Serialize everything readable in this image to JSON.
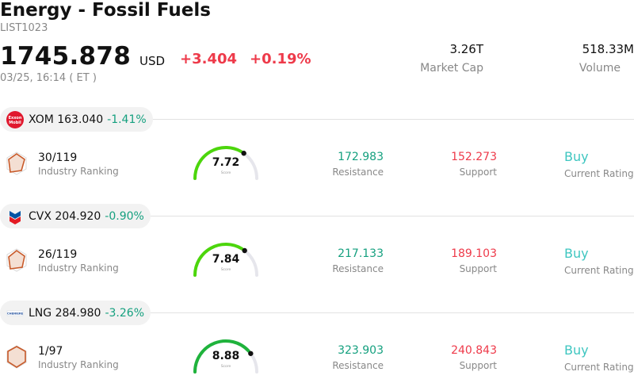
{
  "header": {
    "title": "Energy - Fossil Fuels",
    "code": "LIST1023",
    "price": "1745.878",
    "currency": "USD",
    "change": "+3.404",
    "change_pct": "+0.19%",
    "time": "03/25, 16:14 ( ET )",
    "market_cap": {
      "value": "3.26T",
      "label": "Market Cap"
    },
    "volume": {
      "value": "518.33M",
      "label": "Volume"
    }
  },
  "colors": {
    "up": "#15a07f",
    "down": "#ee3a4a",
    "rating": "#3ec6c0"
  },
  "stocks": [
    {
      "logo_icon": "exxonmobil-logo-icon",
      "logo_text": "Exxon Mobil",
      "symbol_price": "XOM 163.040",
      "change_pct": "-1.41%",
      "rank": "30/119",
      "rank_label": "Industry Ranking",
      "score": "7.72",
      "score_value": 7.72,
      "score_label": "Score",
      "resistance": "172.983",
      "resistance_label": "Resistance",
      "support": "152.273",
      "support_label": "Support",
      "rating": "Buy",
      "rating_label": "Current Rating"
    },
    {
      "logo_icon": "chevron-logo-icon",
      "symbol_price": "CVX 204.920",
      "change_pct": "-0.90%",
      "rank": "26/119",
      "rank_label": "Industry Ranking",
      "score": "7.84",
      "score_value": 7.84,
      "score_label": "Score",
      "resistance": "217.133",
      "resistance_label": "Resistance",
      "support": "189.103",
      "support_label": "Support",
      "rating": "Buy",
      "rating_label": "Current Rating"
    },
    {
      "logo_icon": "cheniere-logo-icon",
      "logo_text": "CHENIERE",
      "symbol_price": "LNG 284.980",
      "change_pct": "-3.26%",
      "rank": "1/97",
      "rank_label": "Industry Ranking",
      "score": "8.88",
      "score_value": 8.88,
      "score_label": "Score",
      "resistance": "323.903",
      "resistance_label": "Resistance",
      "support": "240.843",
      "support_label": "Support",
      "rating": "Buy",
      "rating_label": "Current Rating"
    }
  ]
}
